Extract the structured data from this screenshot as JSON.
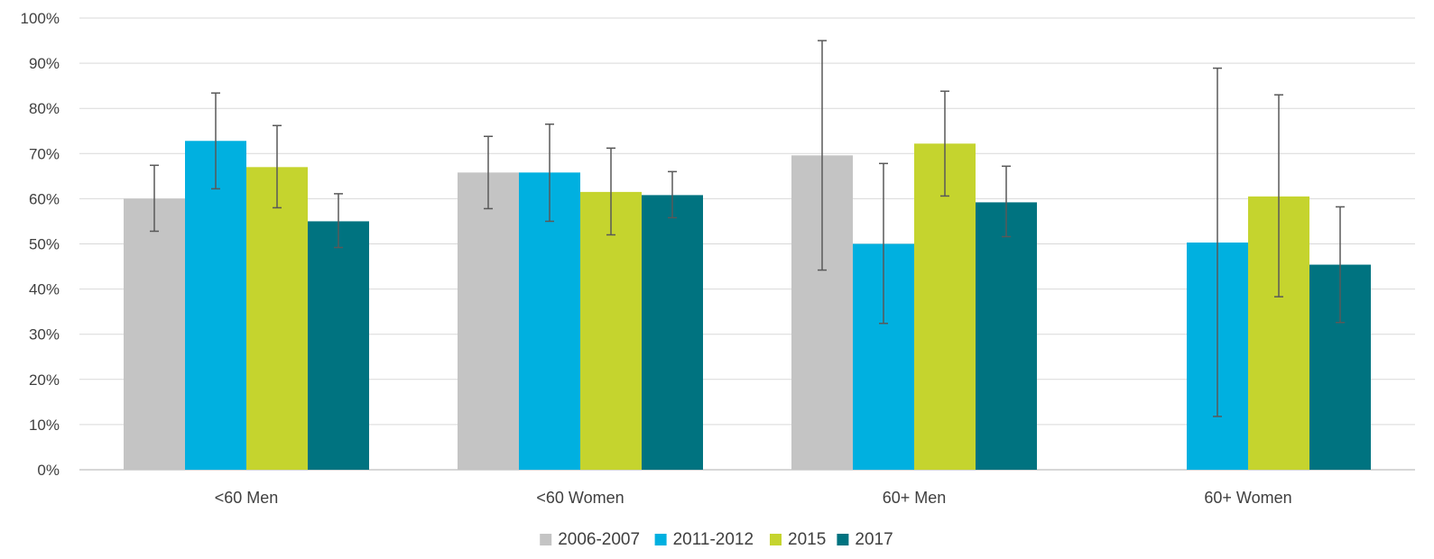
{
  "chart_data": {
    "type": "bar",
    "title": "",
    "xlabel": "",
    "ylabel": "",
    "ylim": [
      0,
      100
    ],
    "yticks": [
      0,
      10,
      20,
      30,
      40,
      50,
      60,
      70,
      80,
      90,
      100
    ],
    "ytick_labels": [
      "0%",
      "10%",
      "20%",
      "30%",
      "40%",
      "50%",
      "60%",
      "70%",
      "80%",
      "90%",
      "100%"
    ],
    "grid": true,
    "legend_position": "bottom",
    "categories": [
      "<60 Men",
      "<60 Women",
      "60+ Men",
      "60+ Women"
    ],
    "series": [
      {
        "name": "2006-2007",
        "color": "#c4c4c4",
        "values": [
          60,
          65.8,
          69.6,
          null
        ],
        "error_low": [
          52.8,
          57.8,
          44.2,
          null
        ],
        "error_high": [
          67.4,
          73.8,
          95.0,
          null
        ]
      },
      {
        "name": "2011-2012",
        "color": "#00b0e0",
        "values": [
          72.8,
          65.8,
          50,
          50.3
        ],
        "error_low": [
          62.2,
          55.0,
          32.4,
          11.8
        ],
        "error_high": [
          83.4,
          76.5,
          67.8,
          88.9
        ]
      },
      {
        "name": "2015",
        "color": "#c5d42e",
        "values": [
          67,
          61.5,
          72.2,
          60.5
        ],
        "error_low": [
          58.0,
          52.0,
          60.6,
          38.3
        ],
        "error_high": [
          76.2,
          71.2,
          83.8,
          83.0
        ]
      },
      {
        "name": "2017",
        "color": "#007380",
        "values": [
          55,
          60.8,
          59.2,
          45.4
        ],
        "error_low": [
          49.2,
          55.8,
          51.6,
          32.6
        ],
        "error_high": [
          61.1,
          66.0,
          67.2,
          58.2
        ]
      }
    ]
  }
}
